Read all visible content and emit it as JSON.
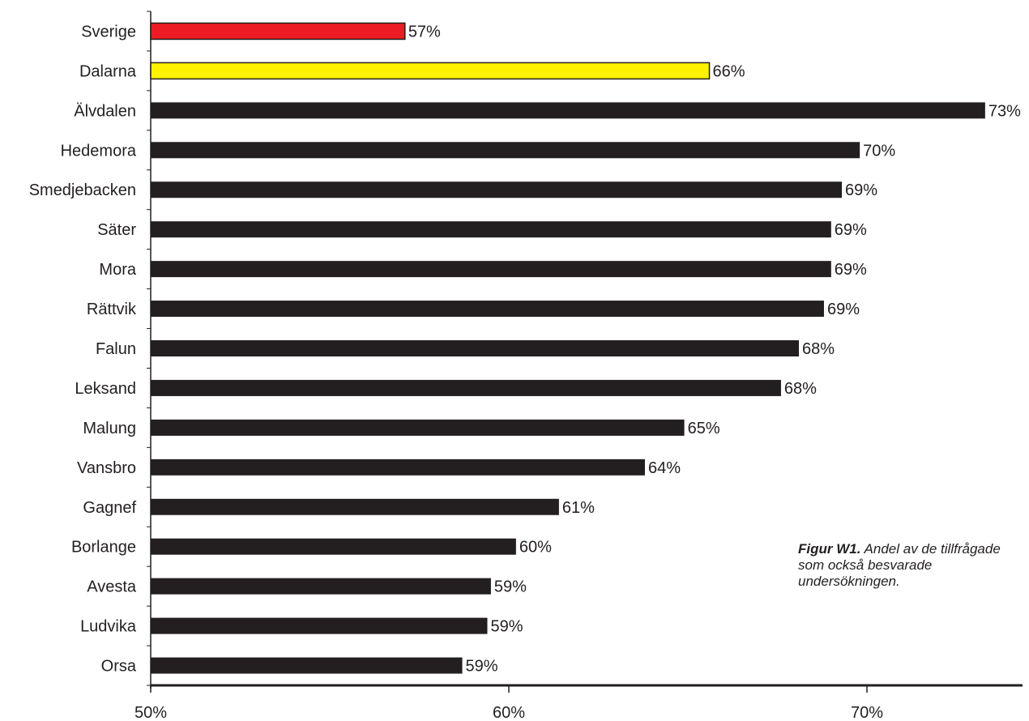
{
  "caption": {
    "bold": "Figur W1.",
    "text": " Andel av de tillfrågade som också besvarade undersökningen."
  },
  "chart_data": {
    "type": "bar",
    "orientation": "horizontal",
    "categories": [
      "Sverige",
      "Dalarna",
      "Älvdalen",
      "Hedemora",
      "Smedjebacken",
      "Säter",
      "Mora",
      "Rättvik",
      "Falun",
      "Leksand",
      "Malung",
      "Vansbro",
      "Gagnef",
      "Borlange",
      "Avesta",
      "Ludvika",
      "Orsa"
    ],
    "values": [
      57.1,
      65.6,
      73.3,
      69.8,
      69.3,
      69.0,
      69.0,
      68.8,
      68.1,
      67.6,
      64.9,
      63.8,
      61.4,
      60.2,
      59.5,
      59.4,
      58.7
    ],
    "value_labels": [
      "57%",
      "66%",
      "73%",
      "70%",
      "69%",
      "69%",
      "69%",
      "69%",
      "68%",
      "68%",
      "65%",
      "64%",
      "61%",
      "60%",
      "59%",
      "59%",
      "59%"
    ],
    "bar_colors": [
      "#ed1c24",
      "#fff200",
      "#231f20",
      "#231f20",
      "#231f20",
      "#231f20",
      "#231f20",
      "#231f20",
      "#231f20",
      "#231f20",
      "#231f20",
      "#231f20",
      "#231f20",
      "#231f20",
      "#231f20",
      "#231f20",
      "#231f20"
    ],
    "xlim": [
      50,
      75
    ],
    "x_ticks": [
      50,
      60,
      70
    ],
    "x_tick_labels": [
      "50%",
      "60%",
      "70%"
    ],
    "grid": false,
    "legend": "none"
  }
}
